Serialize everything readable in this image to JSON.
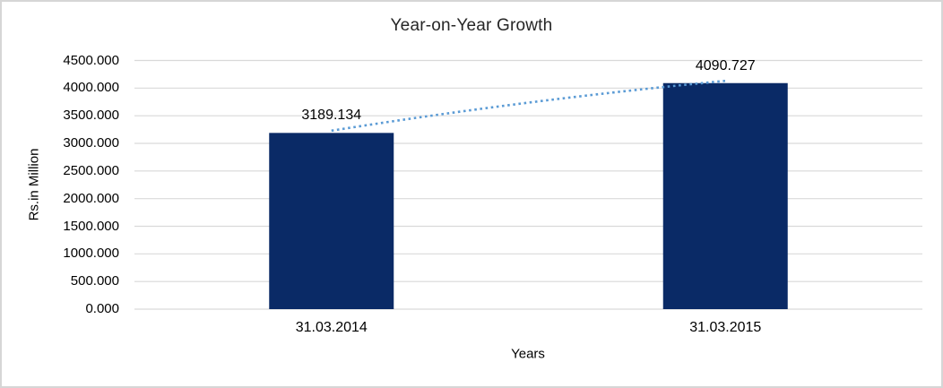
{
  "chart_data": {
    "type": "bar",
    "title": "Year-on-Year Growth",
    "xlabel": "Years",
    "ylabel": "Rs.in Million",
    "categories": [
      "31.03.2014",
      "31.03.2015"
    ],
    "values": [
      3189.134,
      4090.727
    ],
    "data_labels": [
      "3189.134",
      "4090.727"
    ],
    "ylim": [
      0,
      4500
    ],
    "y_tick_step": 500,
    "y_tick_labels": [
      "0.000",
      "500.000",
      "1000.000",
      "1500.000",
      "2000.000",
      "2500.000",
      "3000.000",
      "3500.000",
      "4000.000",
      "4500.000"
    ],
    "grid": true,
    "legend": "none",
    "trendline": {
      "style": "dotted",
      "connects": [
        "31.03.2014",
        "31.03.2015"
      ]
    },
    "colors": {
      "bar": "#0a2a66",
      "trendline": "#5b9bd5",
      "gridline": "#d9d9d9",
      "title_text": "#262626",
      "axis_text": "#000000",
      "frame_border": "#d6d6d6"
    }
  }
}
